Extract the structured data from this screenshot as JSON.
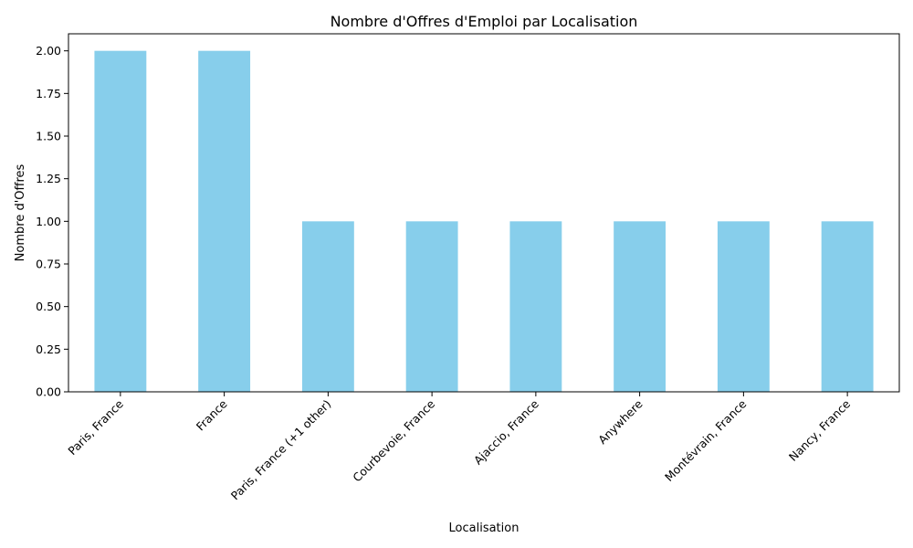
{
  "chart_data": {
    "type": "bar",
    "title": "Nombre d'Offres d'Emploi par Localisation",
    "xlabel": "Localisation",
    "ylabel": "Nombre d'Offres",
    "categories": [
      "Paris, France",
      "France",
      "Paris, France (+1 other)",
      "Courbevoie, France",
      "Ajaccio, France",
      "Anywhere",
      "Montévrain, France",
      "Nancy, France"
    ],
    "values": [
      2,
      2,
      1,
      1,
      1,
      1,
      1,
      1
    ],
    "ylim": [
      0,
      2.1
    ],
    "yticks": [
      0.0,
      0.25,
      0.5,
      0.75,
      1.0,
      1.25,
      1.5,
      1.75,
      2.0
    ],
    "ytick_labels": [
      "0.00",
      "0.25",
      "0.50",
      "0.75",
      "1.00",
      "1.25",
      "1.50",
      "1.75",
      "2.00"
    ],
    "bar_color": "#87ceeb",
    "grid": false,
    "legend": false
  }
}
